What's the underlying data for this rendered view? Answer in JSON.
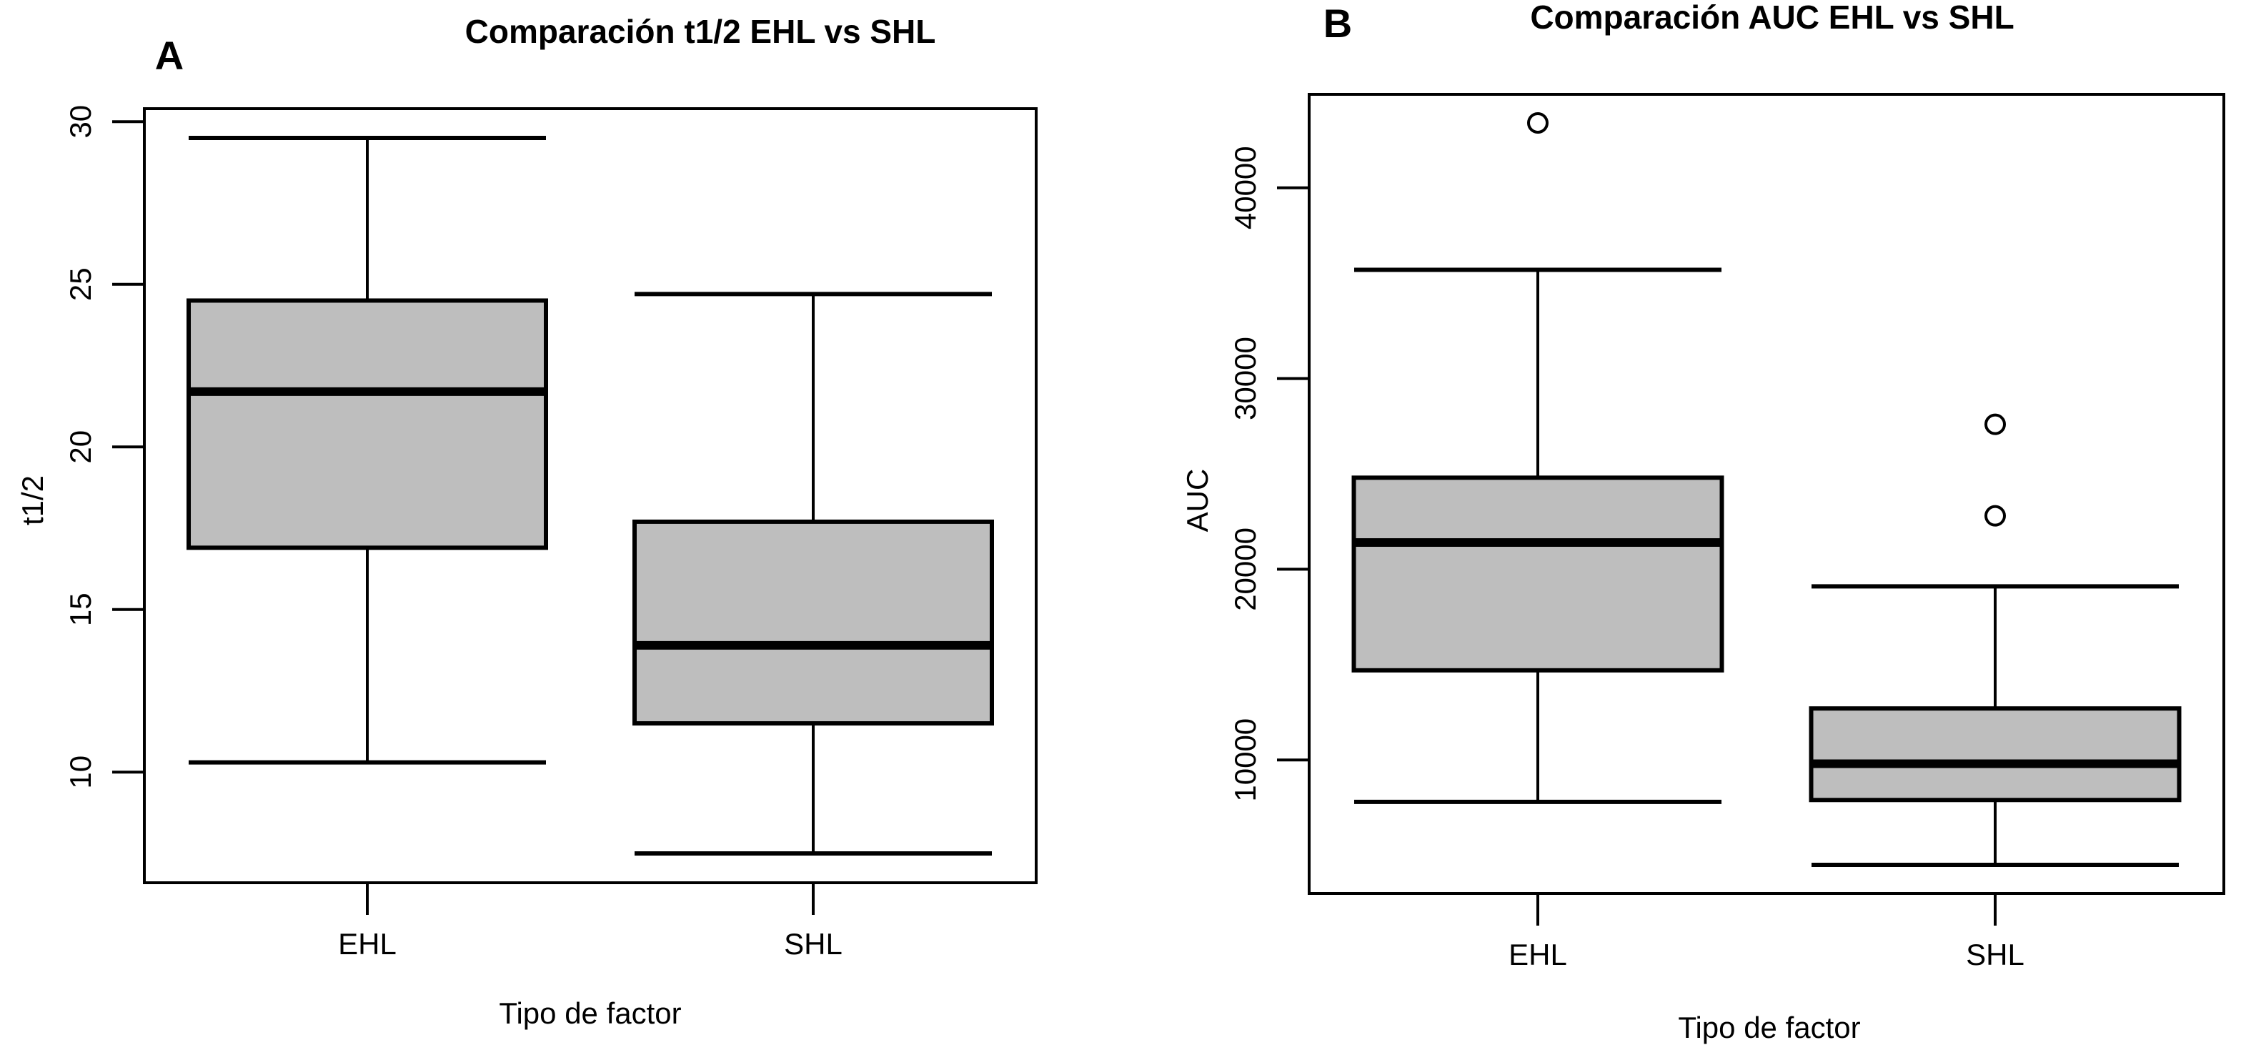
{
  "figure": {
    "background": "#ffffff",
    "box_fill": "#bebebe",
    "line_color": "#000000"
  },
  "chart_data": [
    {
      "type": "boxplot",
      "panel_label": "A",
      "title": "Comparación t1/2 EHL vs SHL",
      "xlabel": "Tipo de factor",
      "ylabel": "t1/2",
      "categories": [
        "EHL",
        "SHL"
      ],
      "yticks": [
        10,
        15,
        20,
        25,
        30
      ],
      "ylim": [
        6.6,
        30.4
      ],
      "grid": false,
      "series": [
        {
          "name": "EHL",
          "whisker_low": 10.3,
          "q1": 16.9,
          "median": 21.7,
          "q3": 24.5,
          "whisker_high": 29.5,
          "outliers": []
        },
        {
          "name": "SHL",
          "whisker_low": 7.5,
          "q1": 11.5,
          "median": 13.9,
          "q3": 17.7,
          "whisker_high": 24.7,
          "outliers": []
        }
      ]
    },
    {
      "type": "boxplot",
      "panel_label": "B",
      "title": "Comparación AUC EHL vs SHL",
      "xlabel": "Tipo de factor",
      "ylabel": "AUC",
      "categories": [
        "EHL",
        "SHL"
      ],
      "yticks": [
        10000,
        20000,
        30000,
        40000
      ],
      "ylim": [
        3000,
        44900
      ],
      "grid": false,
      "series": [
        {
          "name": "EHL",
          "whisker_low": 7800,
          "q1": 14700,
          "median": 21400,
          "q3": 24800,
          "whisker_high": 35700,
          "outliers": [
            43400
          ]
        },
        {
          "name": "SHL",
          "whisker_low": 4500,
          "q1": 7900,
          "median": 9800,
          "q3": 12700,
          "whisker_high": 19100,
          "outliers": [
            22800,
            27600
          ]
        }
      ]
    }
  ]
}
